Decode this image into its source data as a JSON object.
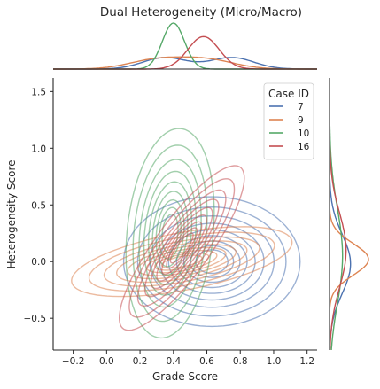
{
  "chart_data": {
    "type": "kde-contour-jointplot",
    "title": "Dual Heterogeneity (Micro/Macro)",
    "xlabel": "Grade Score",
    "ylabel": "Heterogeneity Score",
    "xlim": [
      -0.32,
      1.26
    ],
    "ylim": [
      -0.78,
      1.62
    ],
    "xticks": [
      -0.2,
      0.0,
      0.2,
      0.4,
      0.6,
      0.8,
      1.0,
      1.2
    ],
    "xtick_labels": [
      "−0.2",
      "0.0",
      "0.2",
      "0.4",
      "0.6",
      "0.8",
      "1.0",
      "1.2"
    ],
    "yticks": [
      -0.5,
      0.0,
      0.5,
      1.0,
      1.5
    ],
    "ytick_labels": [
      "−0.5",
      "0.0",
      "0.5",
      "1.0",
      "1.5"
    ],
    "grid": false,
    "legend": {
      "title": "Case ID",
      "placement": "top-right",
      "entries": [
        {
          "label": "7",
          "color": "#4c72b0"
        },
        {
          "label": "9",
          "color": "#dd8452"
        },
        {
          "label": "10",
          "color": "#55a868"
        },
        {
          "label": "16",
          "color": "#c44e52"
        }
      ]
    },
    "series": [
      {
        "name": "7",
        "color": "#4c72b0",
        "center": [
          0.63,
          0.0
        ],
        "sd": [
          0.24,
          0.26
        ],
        "corr": 0.0,
        "x_marginal_peaks": [
          0.35,
          0.75
        ],
        "y_marginal_peak": -0.02
      },
      {
        "name": "9",
        "color": "#dd8452",
        "center": [
          0.45,
          0.0
        ],
        "sd": [
          0.3,
          0.14
        ],
        "corr": 0.55,
        "x_marginal_peaks": [
          0.3,
          0.6
        ],
        "y_marginal_peak": 0.02
      },
      {
        "name": "10",
        "color": "#55a868",
        "center": [
          0.38,
          0.25
        ],
        "sd": [
          0.12,
          0.42
        ],
        "corr": 0.2,
        "x_marginal_peaks": [
          0.4
        ],
        "y_marginal_peak": 0.05
      },
      {
        "name": "16",
        "color": "#c44e52",
        "center": [
          0.45,
          0.12
        ],
        "sd": [
          0.17,
          0.33
        ],
        "corr": 0.85,
        "x_marginal_peaks": [
          0.58
        ],
        "y_marginal_peak": 0.1
      }
    ]
  }
}
